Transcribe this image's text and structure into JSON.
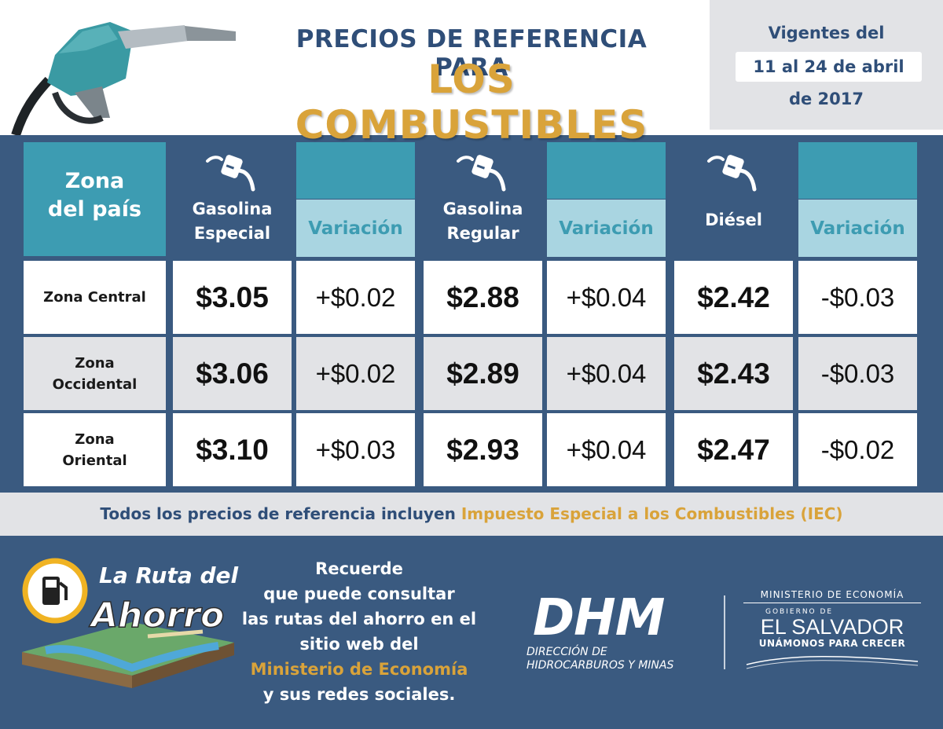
{
  "header": {
    "title_line1": "PRECIOS DE REFERENCIA PARA",
    "title_line2": "LOS COMBUSTIBLES",
    "validity_line1": "Vigentes del",
    "validity_dates": "11 al 24 de abril",
    "validity_year": "de 2017"
  },
  "table": {
    "zone_header_line1": "Zona",
    "zone_header_line2": "del país",
    "variation_label": "Variación",
    "fuels": [
      {
        "line1": "Gasolina",
        "line2": "Especial"
      },
      {
        "line1": "Gasolina",
        "line2": "Regular"
      },
      {
        "line1": "Diésel",
        "line2": ""
      }
    ],
    "rows": [
      {
        "zone_line1": "Zona Central",
        "zone_line2": "",
        "prices": [
          "$3.05",
          "$2.88",
          "$2.42"
        ],
        "variations": [
          "+$0.02",
          "+$0.04",
          "-$0.03"
        ]
      },
      {
        "zone_line1": "Zona",
        "zone_line2": "Occidental",
        "prices": [
          "$3.06",
          "$2.89",
          "$2.43"
        ],
        "variations": [
          "+$0.02",
          "+$0.04",
          "-$0.03"
        ]
      },
      {
        "zone_line1": "Zona",
        "zone_line2": "Oriental",
        "prices": [
          "$3.10",
          "$2.93",
          "$2.47"
        ],
        "variations": [
          "+$0.03",
          "+$0.04",
          "-$0.02"
        ]
      }
    ]
  },
  "note": {
    "text": "Todos los precios de referencia incluyen ",
    "highlight": "Impuesto Especial a los Combustibles (IEC)"
  },
  "footer": {
    "ruta_line1": "La Ruta del",
    "ruta_line2": "Ahorro",
    "reminder_lines": [
      "Recuerde",
      "que puede consultar",
      "las rutas del ahorro en el",
      "sitio web del"
    ],
    "reminder_highlight": "Ministerio de Economía",
    "reminder_last": "y sus redes sociales.",
    "dhm_big": "DHM",
    "dhm_small_line1": "DIRECCIÓN DE",
    "dhm_small_line2": "HIDROCARBUROS Y MINAS",
    "gov_ministry": "MINISTERIO DE ECONOMÍA",
    "gov_gobierno": "GOBIERNO DE",
    "gov_country": "EL SALVADOR",
    "gov_slogan": "UNÁMONOS PARA CRECER"
  },
  "colors": {
    "navy": "#3a5a80",
    "teal": "#3d9cb2",
    "light_teal": "#a9d5e1",
    "gold": "#d9a33a",
    "title_blue": "#2f4e78",
    "light_gray": "#e2e3e6"
  },
  "icons": {
    "pump_nozzle": "fuel-nozzle-icon",
    "fuel_pump": "fuel-pump-icon"
  }
}
